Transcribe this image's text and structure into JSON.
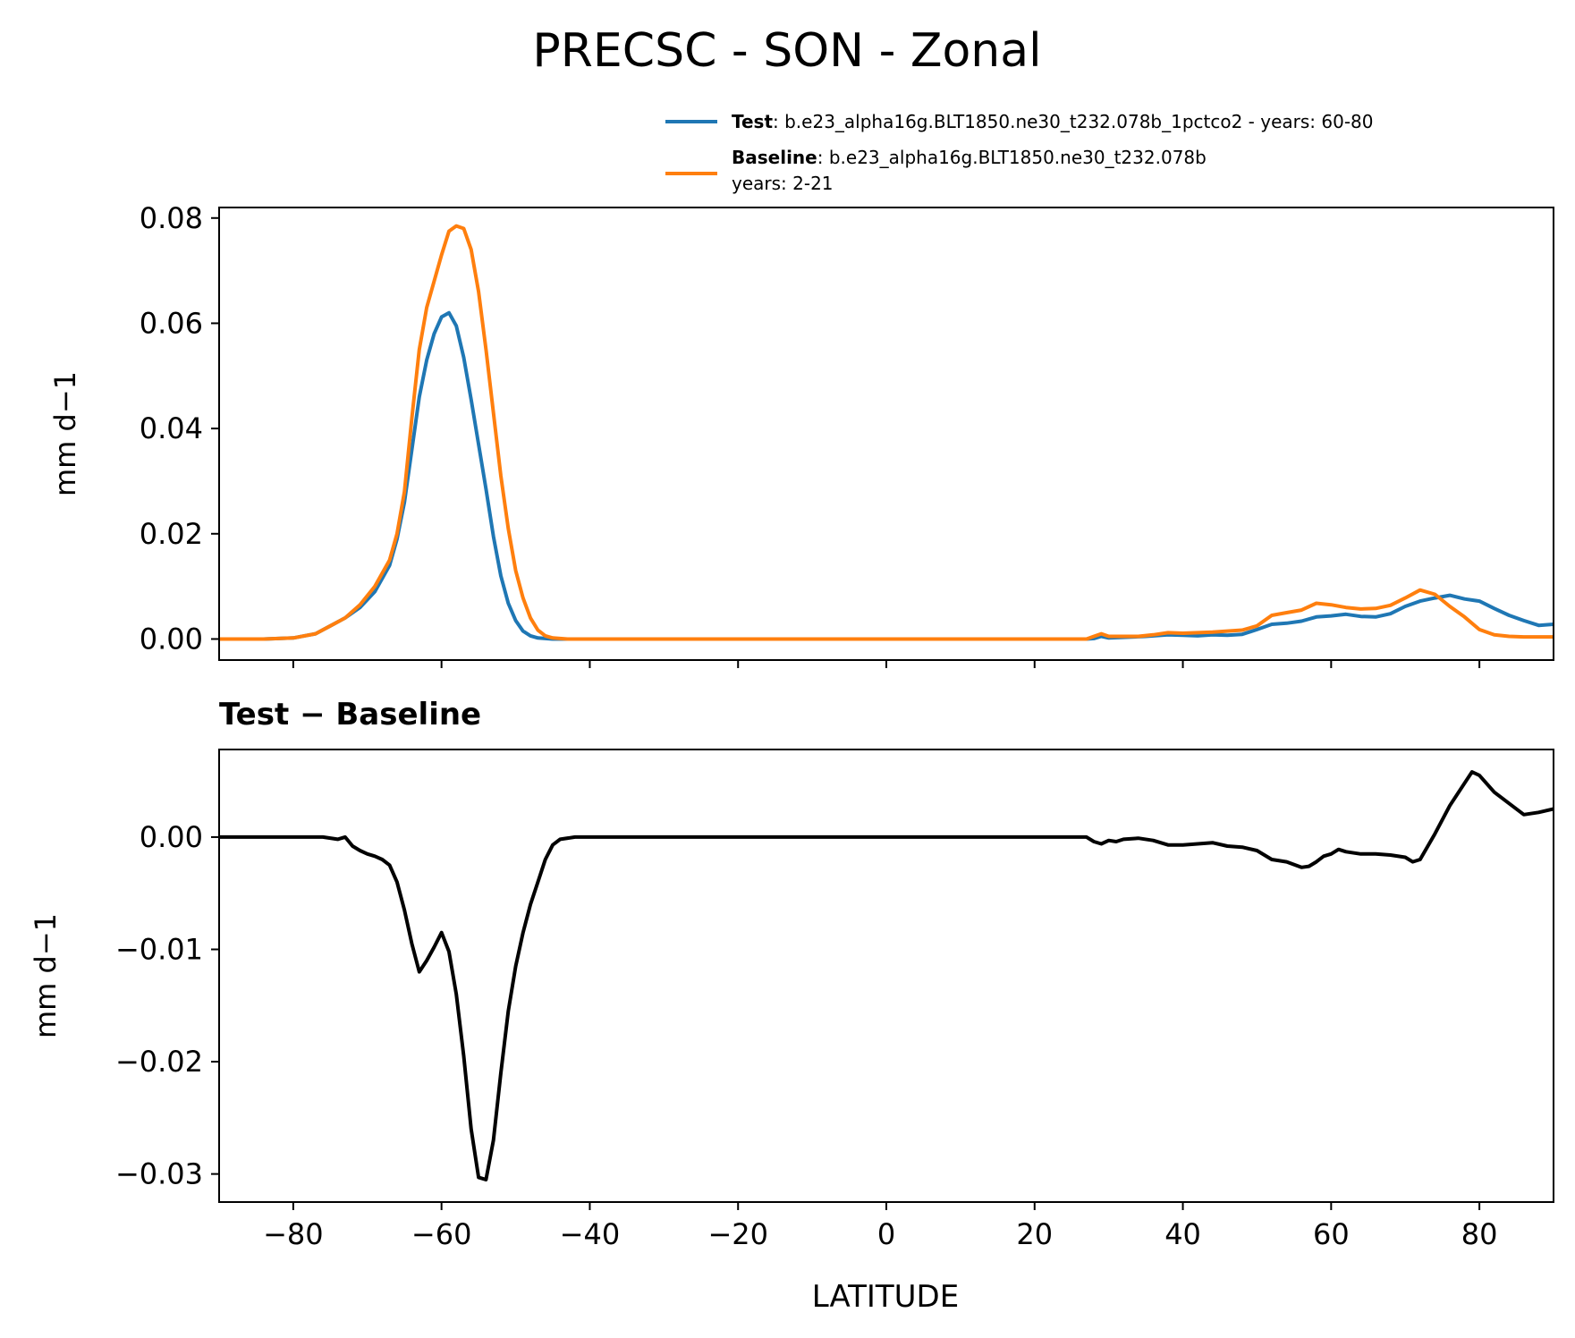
{
  "title": "PRECSC - SON - Zonal",
  "legend": {
    "test_label_bold": "Test",
    "test_label_rest": ": b.e23_alpha16g.BLT1850.ne30_t232.078b_1pctco2 - years: 60-80",
    "baseline_label_bold": "Baseline",
    "baseline_label_rest": ": b.e23_alpha16g.BLT1850.ne30_t232.078b",
    "baseline_label_line2": "years: 2-21"
  },
  "colors": {
    "test": "#1f77b4",
    "baseline": "#ff7f0e",
    "diff": "#000000"
  },
  "chart_data": [
    {
      "type": "line",
      "title": "",
      "xlabel": "",
      "ylabel": "mm d−1",
      "xlim": [
        -90,
        90
      ],
      "ylim": [
        -0.004,
        0.082
      ],
      "yticks": [
        0.0,
        0.02,
        0.04,
        0.06,
        0.08
      ],
      "ytick_labels": [
        "0.00",
        "0.02",
        "0.04",
        "0.06",
        "0.08"
      ],
      "legend_position": "top-right (above axes)",
      "series": [
        {
          "name": "Test",
          "color": "#1f77b4",
          "points": [
            [
              -90,
              0
            ],
            [
              -84,
              0
            ],
            [
              -80,
              0.0002
            ],
            [
              -77,
              0.001
            ],
            [
              -75,
              0.0025
            ],
            [
              -73,
              0.004
            ],
            [
              -71,
              0.006
            ],
            [
              -69,
              0.009
            ],
            [
              -67,
              0.014
            ],
            [
              -66,
              0.019
            ],
            [
              -65,
              0.026
            ],
            [
              -64,
              0.036
            ],
            [
              -63,
              0.046
            ],
            [
              -62,
              0.053
            ],
            [
              -61,
              0.058
            ],
            [
              -60,
              0.0612
            ],
            [
              -59,
              0.062
            ],
            [
              -58,
              0.0595
            ],
            [
              -57,
              0.0535
            ],
            [
              -56,
              0.0455
            ],
            [
              -55,
              0.037
            ],
            [
              -54,
              0.0285
            ],
            [
              -53,
              0.0195
            ],
            [
              -52,
              0.012
            ],
            [
              -51,
              0.0068
            ],
            [
              -50,
              0.0035
            ],
            [
              -49,
              0.0015
            ],
            [
              -48,
              0.0006
            ],
            [
              -47,
              0.0002
            ],
            [
              -45,
              0
            ],
            [
              27,
              0
            ],
            [
              28,
              0.0001
            ],
            [
              29,
              0.0005
            ],
            [
              30,
              0.0002
            ],
            [
              35,
              0.0005
            ],
            [
              38,
              0.0008
            ],
            [
              40,
              0.0007
            ],
            [
              42,
              0.0006
            ],
            [
              44,
              0.0008
            ],
            [
              46,
              0.0007
            ],
            [
              48,
              0.0009
            ],
            [
              50,
              0.0018
            ],
            [
              52,
              0.0028
            ],
            [
              54,
              0.003
            ],
            [
              56,
              0.0034
            ],
            [
              58,
              0.0042
            ],
            [
              60,
              0.0044
            ],
            [
              62,
              0.0047
            ],
            [
              64,
              0.0043
            ],
            [
              66,
              0.0042
            ],
            [
              68,
              0.0048
            ],
            [
              70,
              0.0062
            ],
            [
              72,
              0.0072
            ],
            [
              74,
              0.0078
            ],
            [
              76,
              0.0083
            ],
            [
              78,
              0.0076
            ],
            [
              80,
              0.0072
            ],
            [
              82,
              0.0058
            ],
            [
              84,
              0.0045
            ],
            [
              86,
              0.0035
            ],
            [
              88,
              0.0026
            ],
            [
              90,
              0.0028
            ]
          ]
        },
        {
          "name": "Baseline",
          "color": "#ff7f0e",
          "points": [
            [
              -90,
              0
            ],
            [
              -84,
              0
            ],
            [
              -80,
              0.0002
            ],
            [
              -77,
              0.001
            ],
            [
              -75,
              0.0025
            ],
            [
              -73,
              0.004
            ],
            [
              -71,
              0.0065
            ],
            [
              -69,
              0.01
            ],
            [
              -67,
              0.015
            ],
            [
              -66,
              0.02
            ],
            [
              -65,
              0.028
            ],
            [
              -64,
              0.042
            ],
            [
              -63,
              0.055
            ],
            [
              -62,
              0.063
            ],
            [
              -61,
              0.068
            ],
            [
              -60,
              0.073
            ],
            [
              -59,
              0.0775
            ],
            [
              -58,
              0.0785
            ],
            [
              -57,
              0.078
            ],
            [
              -56,
              0.074
            ],
            [
              -55,
              0.066
            ],
            [
              -54,
              0.055
            ],
            [
              -53,
              0.043
            ],
            [
              -52,
              0.031
            ],
            [
              -51,
              0.021
            ],
            [
              -50,
              0.013
            ],
            [
              -49,
              0.0078
            ],
            [
              -48,
              0.004
            ],
            [
              -47,
              0.0017
            ],
            [
              -46,
              0.0006
            ],
            [
              -45,
              0.0002
            ],
            [
              -43,
              0
            ],
            [
              27,
              0
            ],
            [
              28,
              0.0005
            ],
            [
              29,
              0.001
            ],
            [
              30,
              0.0005
            ],
            [
              34,
              0.0005
            ],
            [
              36,
              0.0008
            ],
            [
              38,
              0.0012
            ],
            [
              40,
              0.0011
            ],
            [
              42,
              0.0012
            ],
            [
              44,
              0.0013
            ],
            [
              46,
              0.0015
            ],
            [
              48,
              0.0017
            ],
            [
              50,
              0.0025
            ],
            [
              52,
              0.0045
            ],
            [
              54,
              0.005
            ],
            [
              56,
              0.0055
            ],
            [
              58,
              0.0068
            ],
            [
              60,
              0.0065
            ],
            [
              62,
              0.006
            ],
            [
              64,
              0.0057
            ],
            [
              66,
              0.0058
            ],
            [
              68,
              0.0064
            ],
            [
              70,
              0.0078
            ],
            [
              72,
              0.0093
            ],
            [
              74,
              0.0085
            ],
            [
              76,
              0.0062
            ],
            [
              78,
              0.0042
            ],
            [
              80,
              0.0018
            ],
            [
              82,
              0.0008
            ],
            [
              84,
              0.0005
            ],
            [
              86,
              0.0004
            ],
            [
              88,
              0.0004
            ],
            [
              90,
              0.0004
            ]
          ]
        }
      ]
    },
    {
      "type": "line",
      "title": "Test − Baseline",
      "xlabel": "LATITUDE",
      "ylabel": "mm d−1",
      "xlim": [
        -90,
        90
      ],
      "ylim": [
        -0.0325,
        0.0078
      ],
      "xticks": [
        -80,
        -60,
        -40,
        -20,
        0,
        20,
        40,
        60,
        80
      ],
      "xtick_labels": [
        "−80",
        "−60",
        "−40",
        "−20",
        "0",
        "20",
        "40",
        "60",
        "80"
      ],
      "yticks": [
        -0.03,
        -0.02,
        -0.01,
        0.0
      ],
      "ytick_labels": [
        "−0.03",
        "−0.02",
        "−0.01",
        "0.00"
      ],
      "series": [
        {
          "name": "Test − Baseline",
          "color": "#000000",
          "points": [
            [
              -90,
              0
            ],
            [
              -76,
              0
            ],
            [
              -74,
              -0.0002
            ],
            [
              -73,
              0
            ],
            [
              -72,
              -0.0008
            ],
            [
              -71,
              -0.0012
            ],
            [
              -70,
              -0.0015
            ],
            [
              -69,
              -0.0017
            ],
            [
              -68,
              -0.002
            ],
            [
              -67,
              -0.0025
            ],
            [
              -66,
              -0.004
            ],
            [
              -65,
              -0.0065
            ],
            [
              -64,
              -0.0095
            ],
            [
              -63,
              -0.012
            ],
            [
              -62,
              -0.011
            ],
            [
              -61,
              -0.0098
            ],
            [
              -60,
              -0.0085
            ],
            [
              -59,
              -0.0102
            ],
            [
              -58,
              -0.014
            ],
            [
              -57,
              -0.0195
            ],
            [
              -56,
              -0.026
            ],
            [
              -55,
              -0.0303
            ],
            [
              -54,
              -0.0305
            ],
            [
              -53,
              -0.027
            ],
            [
              -52,
              -0.021
            ],
            [
              -51,
              -0.0155
            ],
            [
              -50,
              -0.0115
            ],
            [
              -49,
              -0.0085
            ],
            [
              -48,
              -0.006
            ],
            [
              -47,
              -0.004
            ],
            [
              -46,
              -0.002
            ],
            [
              -45,
              -0.0007
            ],
            [
              -44,
              -0.0002
            ],
            [
              -42,
              0
            ],
            [
              27,
              0
            ],
            [
              28,
              -0.0004
            ],
            [
              29,
              -0.0006
            ],
            [
              30,
              -0.0003
            ],
            [
              31,
              -0.0004
            ],
            [
              32,
              -0.0002
            ],
            [
              34,
              -0.0001
            ],
            [
              36,
              -0.0003
            ],
            [
              38,
              -0.0007
            ],
            [
              40,
              -0.0007
            ],
            [
              42,
              -0.0006
            ],
            [
              44,
              -0.0005
            ],
            [
              46,
              -0.0008
            ],
            [
              48,
              -0.0009
            ],
            [
              50,
              -0.0012
            ],
            [
              52,
              -0.002
            ],
            [
              54,
              -0.0022
            ],
            [
              56,
              -0.0027
            ],
            [
              57,
              -0.0026
            ],
            [
              58,
              -0.0022
            ],
            [
              59,
              -0.0017
            ],
            [
              60,
              -0.0015
            ],
            [
              61,
              -0.0011
            ],
            [
              62,
              -0.0013
            ],
            [
              64,
              -0.0015
            ],
            [
              66,
              -0.0015
            ],
            [
              68,
              -0.0016
            ],
            [
              70,
              -0.0018
            ],
            [
              71,
              -0.0022
            ],
            [
              72,
              -0.002
            ],
            [
              74,
              0.0003
            ],
            [
              76,
              0.0028
            ],
            [
              78,
              0.0048
            ],
            [
              79,
              0.0058
            ],
            [
              80,
              0.0055
            ],
            [
              82,
              0.004
            ],
            [
              84,
              0.003
            ],
            [
              86,
              0.002
            ],
            [
              88,
              0.0022
            ],
            [
              90,
              0.0025
            ]
          ]
        }
      ]
    }
  ]
}
